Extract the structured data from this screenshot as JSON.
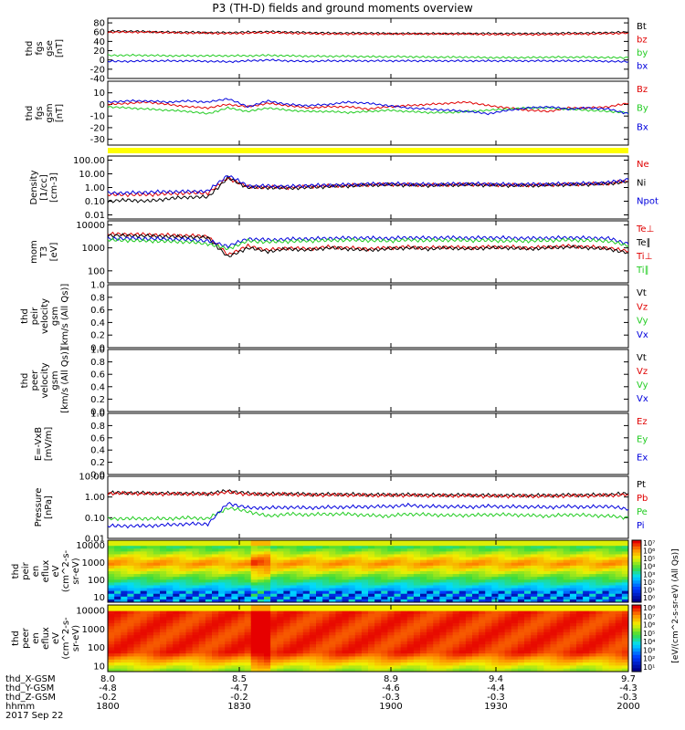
{
  "title": "P3 (TH-D) fields and ground moments overview",
  "colors": {
    "black": "#000000",
    "red": "#e00000",
    "green": "#22cc22",
    "blue": "#0000dd",
    "yellow": "#ffff00"
  },
  "chart_data": [
    {
      "type": "line",
      "name": "fgs-gse",
      "ylabel_lines": [
        "thd",
        "fgs",
        "gse",
        "[nT]"
      ],
      "yticks": [
        "80",
        "60",
        "40",
        "20",
        "0",
        "-20",
        "-40"
      ],
      "legend": [
        "Bt",
        "bz",
        "by",
        "bx"
      ],
      "legend_colors": [
        "black",
        "red",
        "green",
        "blue"
      ],
      "series": [
        {
          "name": "Bt",
          "color": "black",
          "values": [
            62,
            62,
            61,
            60,
            60,
            59,
            59,
            60,
            61,
            60,
            59,
            58,
            58,
            58,
            57,
            57,
            57,
            57,
            57,
            57,
            57,
            57,
            57,
            58,
            58,
            59,
            60
          ]
        },
        {
          "name": "bz",
          "color": "red",
          "values": [
            60,
            60,
            60,
            59,
            58,
            58,
            57,
            58,
            59,
            58,
            57,
            56,
            56,
            56,
            56,
            56,
            56,
            56,
            56,
            55,
            55,
            55,
            55,
            56,
            56,
            57,
            58
          ]
        },
        {
          "name": "by",
          "color": "green",
          "values": [
            10,
            10,
            10,
            9,
            9,
            9,
            9,
            9,
            10,
            9,
            8,
            8,
            8,
            7,
            7,
            7,
            6,
            6,
            6,
            5,
            5,
            5,
            6,
            6,
            6,
            5,
            5
          ]
        },
        {
          "name": "bx",
          "color": "blue",
          "values": [
            -3,
            -3,
            -2,
            -2,
            -2,
            -3,
            -4,
            -2,
            0,
            -2,
            -3,
            -2,
            -2,
            -2,
            -2,
            -2,
            -2,
            -2,
            -2,
            -2,
            -2,
            -2,
            -2,
            -2,
            -2,
            -3,
            -4
          ]
        }
      ],
      "ylim": [
        -40,
        90
      ]
    },
    {
      "type": "line",
      "name": "fgs-gsm",
      "ylabel_lines": [
        "thd",
        "fgs",
        "gsm",
        "[nT]"
      ],
      "yticks": [
        "10",
        "0",
        "-10",
        "-20",
        "-30"
      ],
      "legend": [
        "Bz",
        "By",
        "Bx"
      ],
      "legend_colors": [
        "red",
        "green",
        "blue"
      ],
      "series": [
        {
          "name": "Bz",
          "color": "red",
          "values": [
            0,
            1,
            2,
            0,
            -2,
            -3,
            0,
            -2,
            1,
            -1,
            -3,
            -2,
            -2,
            -4,
            -2,
            -1,
            0,
            1,
            2,
            -1,
            -3,
            -5,
            -6,
            -3,
            -3,
            -2,
            1
          ]
        },
        {
          "name": "By",
          "color": "green",
          "values": [
            -2,
            -3,
            -4,
            -5,
            -6,
            -8,
            -3,
            -6,
            -3,
            -5,
            -6,
            -6,
            -7,
            -6,
            -5,
            -6,
            -7,
            -7,
            -6,
            -5,
            -4,
            -3,
            -3,
            -4,
            -5,
            -6,
            -7
          ]
        },
        {
          "name": "Bx",
          "color": "blue",
          "values": [
            2,
            3,
            3,
            2,
            3,
            2,
            5,
            -2,
            3,
            0,
            -1,
            0,
            2,
            1,
            -1,
            -3,
            -4,
            -5,
            -6,
            -8,
            -5,
            -3,
            -2,
            -4,
            -3,
            -4,
            -8
          ]
        }
      ],
      "ylim": [
        -35,
        20
      ]
    },
    {
      "type": "line",
      "name": "density",
      "ylabel_lines": [
        "Density",
        "[1/cc]",
        "[cm-3]"
      ],
      "yticks": [
        "100.00",
        "10.00",
        "1.00",
        "0.10",
        "0.01"
      ],
      "legend": [
        "Ne",
        "Ni",
        "Npot"
      ],
      "legend_colors": [
        "red",
        "black",
        "blue"
      ],
      "series": [
        {
          "name": "Ne",
          "color": "red",
          "values": [
            0.3,
            0.3,
            0.3,
            0.35,
            0.4,
            0.4,
            5,
            1.1,
            1.1,
            1.0,
            1.2,
            1.3,
            1.4,
            1.6,
            1.7,
            1.6,
            1.5,
            1.6,
            1.7,
            1.6,
            1.5,
            1.5,
            1.6,
            1.7,
            1.8,
            2.0,
            3.0
          ]
        },
        {
          "name": "Ni",
          "color": "black",
          "values": [
            0.1,
            0.12,
            0.1,
            0.15,
            0.2,
            0.2,
            5,
            1.0,
            1.0,
            0.9,
            1.0,
            1.2,
            1.3,
            1.5,
            1.6,
            1.5,
            1.4,
            1.5,
            1.6,
            1.5,
            1.4,
            1.4,
            1.5,
            1.6,
            1.7,
            1.9,
            2.8
          ]
        },
        {
          "name": "Npot",
          "color": "blue",
          "values": [
            0.4,
            0.4,
            0.45,
            0.5,
            0.5,
            0.55,
            8,
            1.3,
            1.3,
            1.2,
            1.4,
            1.5,
            1.6,
            1.8,
            1.9,
            1.8,
            1.7,
            1.8,
            1.9,
            1.8,
            1.7,
            1.7,
            1.8,
            1.9,
            2.0,
            2.3,
            4.0
          ]
        }
      ],
      "ylim": [
        0.005,
        200
      ],
      "log": true
    },
    {
      "type": "line",
      "name": "mom-temp",
      "ylabel_lines": [
        "mom",
        "T3",
        "[eV]"
      ],
      "yticks": [
        "10000",
        "1000",
        "100"
      ],
      "legend": [
        "Te⊥",
        "Te∥",
        "Ti⊥",
        "Ti∥"
      ],
      "legend_colors": [
        "red",
        "black",
        "red",
        "green"
      ],
      "series": [
        {
          "name": "Te⊥",
          "color": "red",
          "values": [
            4000,
            3900,
            3800,
            3600,
            3400,
            3200,
            500,
            1200,
            800,
            1000,
            900,
            1100,
            1000,
            900,
            1000,
            1100,
            1000,
            1100,
            1000,
            1100,
            1100,
            1000,
            1100,
            1200,
            1100,
            1000,
            700
          ]
        },
        {
          "name": "Te∥",
          "color": "black",
          "values": [
            3500,
            3400,
            3300,
            3100,
            3000,
            2800,
            400,
            1000,
            700,
            900,
            800,
            1000,
            900,
            800,
            900,
            1000,
            900,
            1000,
            900,
            1000,
            1000,
            900,
            1000,
            1100,
            1000,
            900,
            600
          ]
        },
        {
          "name": "Ti⊥",
          "color": "blue",
          "values": [
            2500,
            2600,
            2500,
            2400,
            2300,
            2000,
            1200,
            2500,
            2200,
            2400,
            2500,
            2600,
            2700,
            2700,
            2600,
            2800,
            2700,
            2800,
            2700,
            2800,
            2700,
            2600,
            2700,
            2800,
            2700,
            2600,
            1500
          ]
        },
        {
          "name": "Ti∥",
          "color": "green",
          "values": [
            2200,
            2100,
            2000,
            1900,
            1800,
            1500,
            900,
            2000,
            1800,
            1900,
            2000,
            2100,
            2200,
            2100,
            2000,
            2200,
            2100,
            2200,
            2100,
            2100,
            2000,
            2000,
            2100,
            2200,
            2100,
            2000,
            1200
          ]
        }
      ],
      "ylim": [
        30,
        15000
      ],
      "log": true
    },
    {
      "type": "line",
      "name": "peir-velocity",
      "ylabel_lines": [
        "thd",
        "peir",
        "velocity",
        "gsm",
        "[km/s (All Qs)]"
      ],
      "yticks": [
        "1.0",
        "0.8",
        "0.6",
        "0.4",
        "0.2",
        "0.0"
      ],
      "legend": [
        "Vt",
        "Vz",
        "Vy",
        "Vx"
      ],
      "legend_colors": [
        "black",
        "red",
        "green",
        "blue"
      ],
      "series": [],
      "ylim": [
        0,
        1
      ]
    },
    {
      "type": "line",
      "name": "peer-velocity",
      "ylabel_lines": [
        "thd",
        "peer",
        "velocity",
        "gsm",
        "[km/s (All Qs)]"
      ],
      "yticks": [
        "1.0",
        "0.8",
        "0.6",
        "0.4",
        "0.2",
        "0.0"
      ],
      "legend": [
        "Vt",
        "Vz",
        "Vy",
        "Vx"
      ],
      "legend_colors": [
        "black",
        "red",
        "green",
        "blue"
      ],
      "series": [],
      "ylim": [
        0,
        1
      ]
    },
    {
      "type": "line",
      "name": "e-field",
      "ylabel_lines": [
        "E=-VxB",
        "[mV/m]"
      ],
      "yticks": [
        "1.0",
        "0.8",
        "0.6",
        "0.4",
        "0.2",
        "0.0"
      ],
      "legend": [
        "Ez",
        "Ey",
        "Ex"
      ],
      "legend_colors": [
        "red",
        "green",
        "blue"
      ],
      "series": [],
      "ylim": [
        0,
        1
      ]
    },
    {
      "type": "line",
      "name": "pressure",
      "ylabel_lines": [
        "Pressure",
        "[nPa]"
      ],
      "yticks": [
        "10.00",
        "1.00",
        "0.10",
        "0.01"
      ],
      "legend": [
        "Pt",
        "Pb",
        "Pe",
        "Pi"
      ],
      "legend_colors": [
        "black",
        "red",
        "green",
        "blue"
      ],
      "series": [
        {
          "name": "Pt",
          "color": "black",
          "values": [
            1.6,
            1.6,
            1.55,
            1.5,
            1.5,
            1.45,
            2.0,
            1.5,
            1.4,
            1.45,
            1.35,
            1.35,
            1.35,
            1.3,
            1.3,
            1.3,
            1.25,
            1.25,
            1.25,
            1.2,
            1.2,
            1.2,
            1.2,
            1.25,
            1.25,
            1.3,
            1.5
          ]
        },
        {
          "name": "Pb",
          "color": "red",
          "values": [
            1.5,
            1.5,
            1.45,
            1.4,
            1.4,
            1.35,
            1.7,
            1.35,
            1.3,
            1.35,
            1.25,
            1.25,
            1.25,
            1.2,
            1.2,
            1.2,
            1.15,
            1.15,
            1.15,
            1.1,
            1.1,
            1.1,
            1.1,
            1.15,
            1.15,
            1.2,
            1.3
          ]
        },
        {
          "name": "Pe",
          "color": "green",
          "values": [
            0.09,
            0.09,
            0.09,
            0.09,
            0.1,
            0.09,
            0.3,
            0.2,
            0.12,
            0.15,
            0.14,
            0.15,
            0.15,
            0.13,
            0.12,
            0.15,
            0.14,
            0.13,
            0.13,
            0.14,
            0.14,
            0.13,
            0.12,
            0.14,
            0.13,
            0.12,
            0.1
          ]
        },
        {
          "name": "Pi",
          "color": "blue",
          "values": [
            0.04,
            0.04,
            0.04,
            0.045,
            0.05,
            0.05,
            0.5,
            0.3,
            0.3,
            0.32,
            0.3,
            0.32,
            0.33,
            0.34,
            0.35,
            0.4,
            0.35,
            0.35,
            0.33,
            0.36,
            0.34,
            0.34,
            0.32,
            0.35,
            0.33,
            0.36,
            0.25
          ]
        }
      ],
      "ylim": [
        0.01,
        10
      ],
      "log": true
    },
    {
      "type": "heatmap",
      "name": "peir-eflux",
      "ylabel_lines": [
        "thd",
        "peir",
        "en",
        "eflux",
        "eV",
        "(cm^2-s-",
        "sr-eV)"
      ],
      "yticks": [
        "10000",
        "1000",
        "100",
        "10"
      ],
      "colorbar_label": "[eV/(cm^2-s-sr-eV) (All Qs)]",
      "colorbar_ticks": [
        "10⁷",
        "10⁶",
        "10⁵",
        "10⁴",
        "10³",
        "10²",
        "10¹",
        "10⁰"
      ],
      "ylim": [
        5,
        20000
      ],
      "log": true
    },
    {
      "type": "heatmap",
      "name": "peer-eflux",
      "ylabel_lines": [
        "thd",
        "peer",
        "en",
        "eflux",
        "eV",
        "(cm^2-s-",
        "sr-eV)"
      ],
      "yticks": [
        "10000",
        "1000",
        "100",
        "10"
      ],
      "colorbar_label": "[eV/(cm^2-s-sr-eV) (All Qs)]",
      "colorbar_ticks": [
        "10⁸",
        "10⁷",
        "10⁶",
        "10⁵",
        "10⁴",
        "10³",
        "10²",
        "10¹"
      ],
      "ylim": [
        5,
        20000
      ],
      "log": true
    }
  ],
  "xaxis": {
    "row_labels": [
      "thd_X-GSM",
      "thd_Y-GSM",
      "thd_Z-GSM",
      "hhmm"
    ],
    "date_label": "2017 Sep 22",
    "ticks": [
      {
        "values": [
          "8.0",
          "-4.8",
          "-0.2",
          "1800"
        ]
      },
      {
        "values": [
          "8.5",
          "-4.7",
          "-0.2",
          "1830"
        ]
      },
      {
        "values": [
          "8.9",
          "-4.6",
          "-0.3",
          "1900"
        ]
      },
      {
        "values": [
          "9.4",
          "-4.4",
          "-0.3",
          "1930"
        ]
      },
      {
        "values": [
          "9.7",
          "-4.3",
          "-0.3",
          "2000"
        ]
      }
    ]
  }
}
